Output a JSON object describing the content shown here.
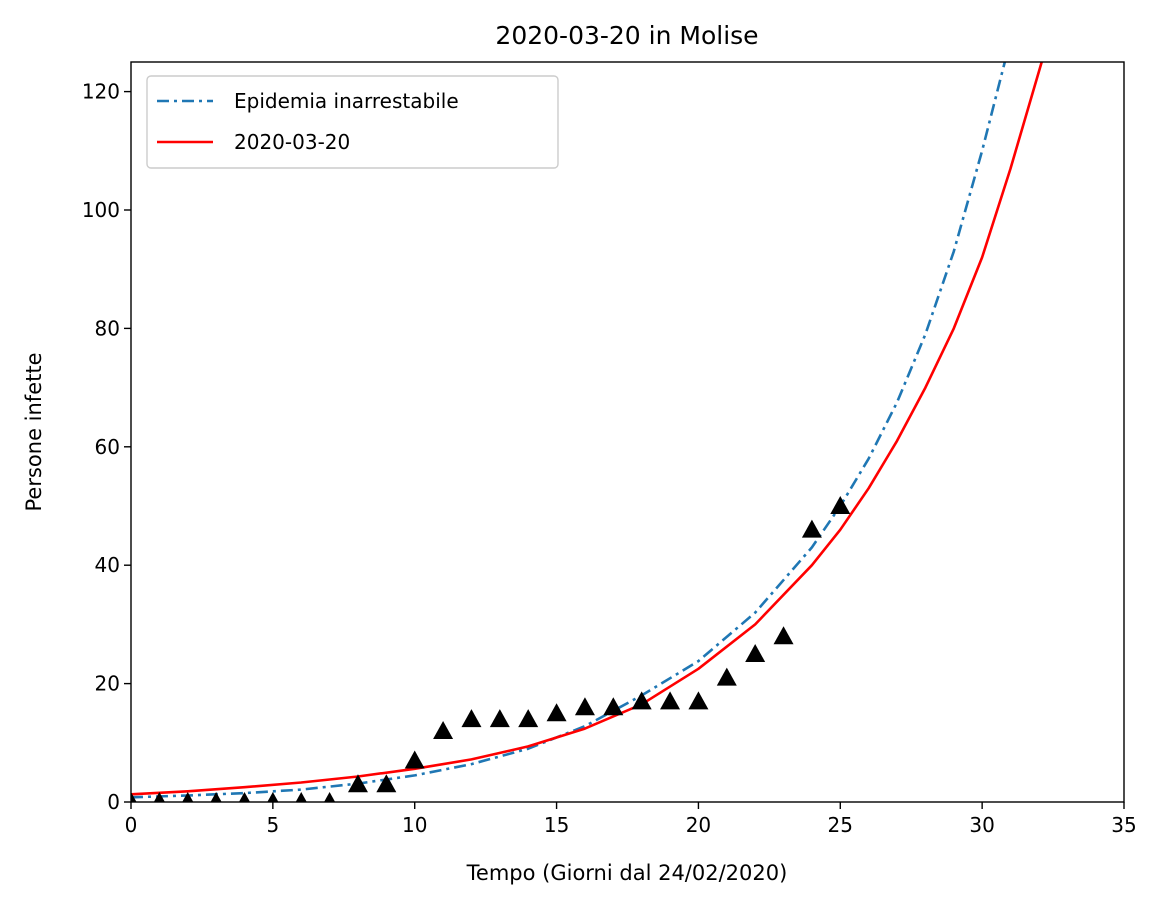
{
  "chart_data": {
    "type": "line",
    "title": "2020-03-20 in Molise",
    "xlabel": "Tempo (Giorni dal 24/02/2020)",
    "ylabel": "Persone infette",
    "xlim": [
      0,
      35
    ],
    "ylim": [
      0,
      125
    ],
    "xticks": [
      "0",
      "5",
      "10",
      "15",
      "20",
      "25",
      "30",
      "35"
    ],
    "yticks": [
      "0",
      "20",
      "40",
      "60",
      "80",
      "100",
      "120"
    ],
    "grid": false,
    "legend_position": "top-left",
    "series": [
      {
        "name": "Epidemia inarrestabile",
        "kind": "line",
        "style": "dash-dot",
        "color": "#1f77b4",
        "x": [
          0,
          2,
          4,
          6,
          8,
          10,
          12,
          14,
          16,
          18,
          20,
          22,
          24,
          25,
          26,
          27,
          28,
          29,
          30,
          30.8
        ],
        "y": [
          0.8,
          1.1,
          1.5,
          2.1,
          3.1,
          4.5,
          6.4,
          9.0,
          12.8,
          18.0,
          23.8,
          32.0,
          43.0,
          50.0,
          58.0,
          67.5,
          79.0,
          93.0,
          110.0,
          125.0
        ]
      },
      {
        "name": "2020-03-20",
        "kind": "line",
        "style": "solid",
        "color": "#ff0000",
        "x": [
          0,
          2,
          4,
          6,
          8,
          10,
          12,
          14,
          16,
          18,
          20,
          22,
          24,
          25,
          26,
          27,
          28,
          29,
          30,
          31,
          32.1
        ],
        "y": [
          1.3,
          1.8,
          2.5,
          3.3,
          4.3,
          5.6,
          7.2,
          9.4,
          12.4,
          16.5,
          22.5,
          30.0,
          40.0,
          46.0,
          53.0,
          61.0,
          70.0,
          80.0,
          92.0,
          107.0,
          125.0
        ]
      },
      {
        "name": "",
        "kind": "marker",
        "marker": "triangle-up",
        "color": "#000000",
        "x": [
          0,
          1,
          2,
          3,
          4,
          5,
          6,
          7,
          8,
          9,
          10,
          11,
          12,
          13,
          14,
          15,
          16,
          17,
          18,
          19,
          20,
          21,
          22,
          23,
          24,
          25
        ],
        "y": [
          0,
          0,
          0,
          0,
          0,
          0,
          0,
          0,
          3,
          3,
          7,
          12,
          14,
          14,
          14,
          15,
          16,
          16,
          17,
          17,
          17,
          21,
          25,
          28,
          46,
          50
        ]
      }
    ]
  }
}
